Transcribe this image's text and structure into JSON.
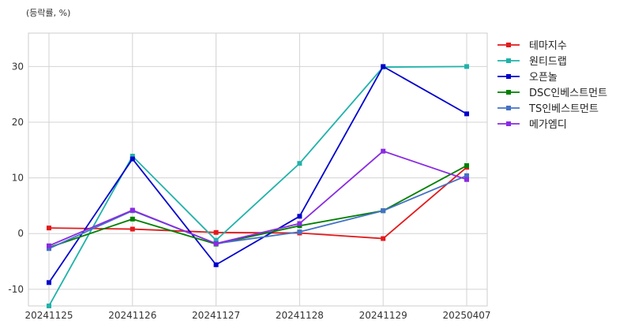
{
  "chart_data": {
    "type": "line",
    "unit_label": "(등락률, %)",
    "title": "",
    "xlabel": "",
    "ylabel": "",
    "categories": [
      "20241125",
      "20241126",
      "20241127",
      "20241128",
      "20241129",
      "20250407"
    ],
    "ylim": [
      -13,
      36
    ],
    "yticks": [
      -10,
      0,
      10,
      20,
      30
    ],
    "grid": true,
    "legend_position": "right",
    "series": [
      {
        "name": "테마지수",
        "color": "#e31a1c",
        "values": [
          1.0,
          0.8,
          0.2,
          0.1,
          -0.9,
          11.9
        ]
      },
      {
        "name": "원티드랩",
        "color": "#20b2aa",
        "values": [
          -13.0,
          13.9,
          -1.2,
          12.6,
          29.9,
          30.0
        ]
      },
      {
        "name": "오픈놀",
        "color": "#0000cd",
        "values": [
          -8.8,
          13.4,
          -5.6,
          3.1,
          30.0,
          21.5
        ]
      },
      {
        "name": "DSC인베스트먼트",
        "color": "#008000",
        "values": [
          -2.5,
          2.6,
          -1.9,
          1.4,
          4.1,
          12.2
        ]
      },
      {
        "name": "TS인베스트먼트",
        "color": "#4472c4",
        "values": [
          -2.7,
          4.1,
          -1.8,
          0.3,
          4.1,
          10.4
        ]
      },
      {
        "name": "메가엠디",
        "color": "#8a2be2",
        "values": [
          -2.2,
          4.2,
          -1.8,
          1.8,
          14.8,
          9.7
        ]
      }
    ]
  }
}
